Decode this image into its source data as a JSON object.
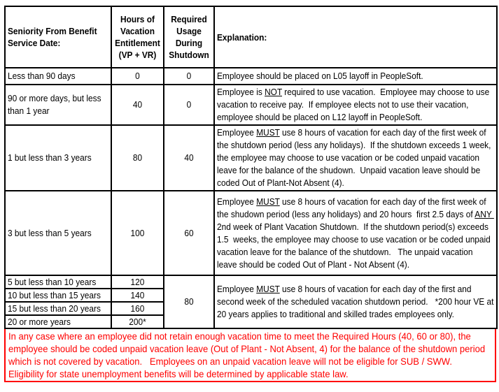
{
  "table": {
    "headers": {
      "seniority": "Seniority From Benefit\nService Date:",
      "entitlement": "Hours of\nVacation\nEntitlement\n(VP + VR)",
      "required": "Required\nUsage\nDuring\nShutdown",
      "explanation": "Explanation:"
    },
    "rows": [
      {
        "seniority": "Less than 90 days",
        "entitlement": "0",
        "required": "0",
        "explanation": [
          {
            "t": "Employee should be placed on L05 layoff in PeopleSoft."
          }
        ]
      },
      {
        "seniority": "90 or more days, but less than 1 year",
        "entitlement": "40",
        "required": "0",
        "explanation": [
          {
            "t": "Employee is "
          },
          {
            "t": "NOT",
            "u": true
          },
          {
            "t": " required to use vacation.  Employee may choose to use vacation to receive pay.  If employee elects not to use their vacation, employee should be placed on L12 layoff in PeopleSoft."
          }
        ]
      },
      {
        "seniority": "1 but less than 3 years",
        "entitlement": "80",
        "required": "40",
        "explanation": [
          {
            "t": "Employee "
          },
          {
            "t": "MUST",
            "u": true
          },
          {
            "t": " use 8 hours of vacation for each day of the first week of the shutdown period (less any holidays).  If the shutdown exceeds 1 week, the employee may choose to use vacation or be coded unpaid vacation leave for the balance of the shudown.  Unpaid vacation leave should be coded Out of Plant-Not Absent (4)."
          }
        ]
      },
      {
        "seniority": "3 but less than 5 years",
        "entitlement": "100",
        "required": "60",
        "explanation": [
          {
            "t": "Employee "
          },
          {
            "t": "MUST",
            "u": true
          },
          {
            "t": " use 8 hours of vacation for each day of the first week of the shudown period (less any holidays) and 20 hours  first 2.5 days of "
          },
          {
            "t": "ANY ",
            "u": true
          },
          {
            "t": " 2nd week of Plant Vacation Shutdown.  If the shutdown period(s) exceeds 1.5  weeks, the employee may choose to use vacation or be coded unpaid vacation leave for the balance of the shutdown.   The unpaid vacation leave should be coded Out of Plant - Not Absent (4)."
          }
        ]
      }
    ],
    "merged_group": {
      "rows": [
        {
          "seniority": "5 but less than 10 years",
          "entitlement": "120"
        },
        {
          "seniority": "10 but less than 15 years",
          "entitlement": "140"
        },
        {
          "seniority": "15 but less than 20 years",
          "entitlement": "160"
        },
        {
          "seniority": "20 or more years",
          "entitlement": "200*"
        }
      ],
      "required": "80",
      "explanation": [
        {
          "t": "Employee "
        },
        {
          "t": "MUST",
          "u": true
        },
        {
          "t": " use 8 hours of vacation for each day of the first and second week of the scheduled vacation shutdown period.   *200 hour VE at 20 years applies to traditional and skilled trades employees only."
        }
      ]
    },
    "footer_note": "In any case where an employee did not retain enough vacation time to meet the Required Hours (40, 60 or 80), the employee should be coded unpaid vacation leave (Out of Plant - Not Absent, 4) for the balance of the shutdown period which is not covered by vacation.   Employees on an unpaid vacation leave will not be eligible for SUB / SWW.  Eligibility for state unemployment benefits will be determined by applicable state law."
  },
  "colors": {
    "text": "#000000",
    "border": "#000000",
    "note_text": "#FF0000",
    "note_border": "#FF0000",
    "background": "#FFFFFF"
  }
}
